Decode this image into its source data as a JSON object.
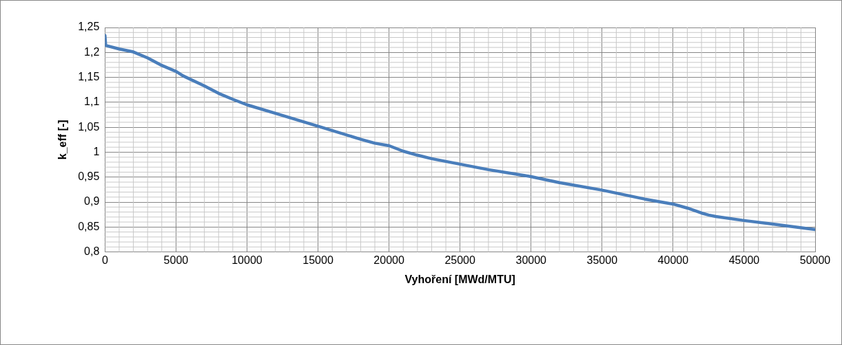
{
  "chart_data": {
    "type": "line",
    "xlabel": "Vyhoření [MWd/MTU]",
    "ylabel": "k_eff [-]",
    "x": [
      0,
      50,
      1000,
      2000,
      3000,
      4000,
      5000,
      5500,
      7000,
      8000,
      9000,
      10000,
      12000,
      15000,
      18000,
      19000,
      20000,
      21000,
      22000,
      23000,
      25000,
      27000,
      30000,
      32000,
      35000,
      38000,
      40000,
      41000,
      42000,
      42500,
      43000,
      45000,
      47000,
      50000
    ],
    "series": [
      {
        "color": "#4a7ebb",
        "values": [
          1.234,
          1.214,
          1.207,
          1.201,
          1.189,
          1.174,
          1.162,
          1.153,
          1.133,
          1.118,
          1.106,
          1.095,
          1.078,
          1.052,
          1.026,
          1.018,
          1.013,
          1.002,
          0.994,
          0.987,
          0.976,
          0.965,
          0.951,
          0.939,
          0.924,
          0.906,
          0.896,
          0.888,
          0.878,
          0.874,
          0.871,
          0.863,
          0.856,
          0.845
        ]
      }
    ],
    "xlim": [
      0,
      50000
    ],
    "xticks": [
      0,
      5000,
      10000,
      15000,
      20000,
      25000,
      30000,
      35000,
      40000,
      45000,
      50000
    ],
    "ylim": [
      0.8,
      1.25
    ],
    "yticks": [
      {
        "value": 0.8,
        "label": "0,8"
      },
      {
        "value": 0.85,
        "label": "0,85"
      },
      {
        "value": 0.9,
        "label": "0,9"
      },
      {
        "value": 0.95,
        "label": "0,95"
      },
      {
        "value": 1,
        "label": "1"
      },
      {
        "value": 1.05,
        "label": "1,05"
      },
      {
        "value": 1.1,
        "label": "1,1"
      },
      {
        "value": 1.15,
        "label": "1,15"
      },
      {
        "value": 1.2,
        "label": "1,2"
      },
      {
        "value": 1.25,
        "label": "1,25"
      }
    ],
    "grid": true,
    "legend": false,
    "marker": "none",
    "line_style": "solid"
  }
}
